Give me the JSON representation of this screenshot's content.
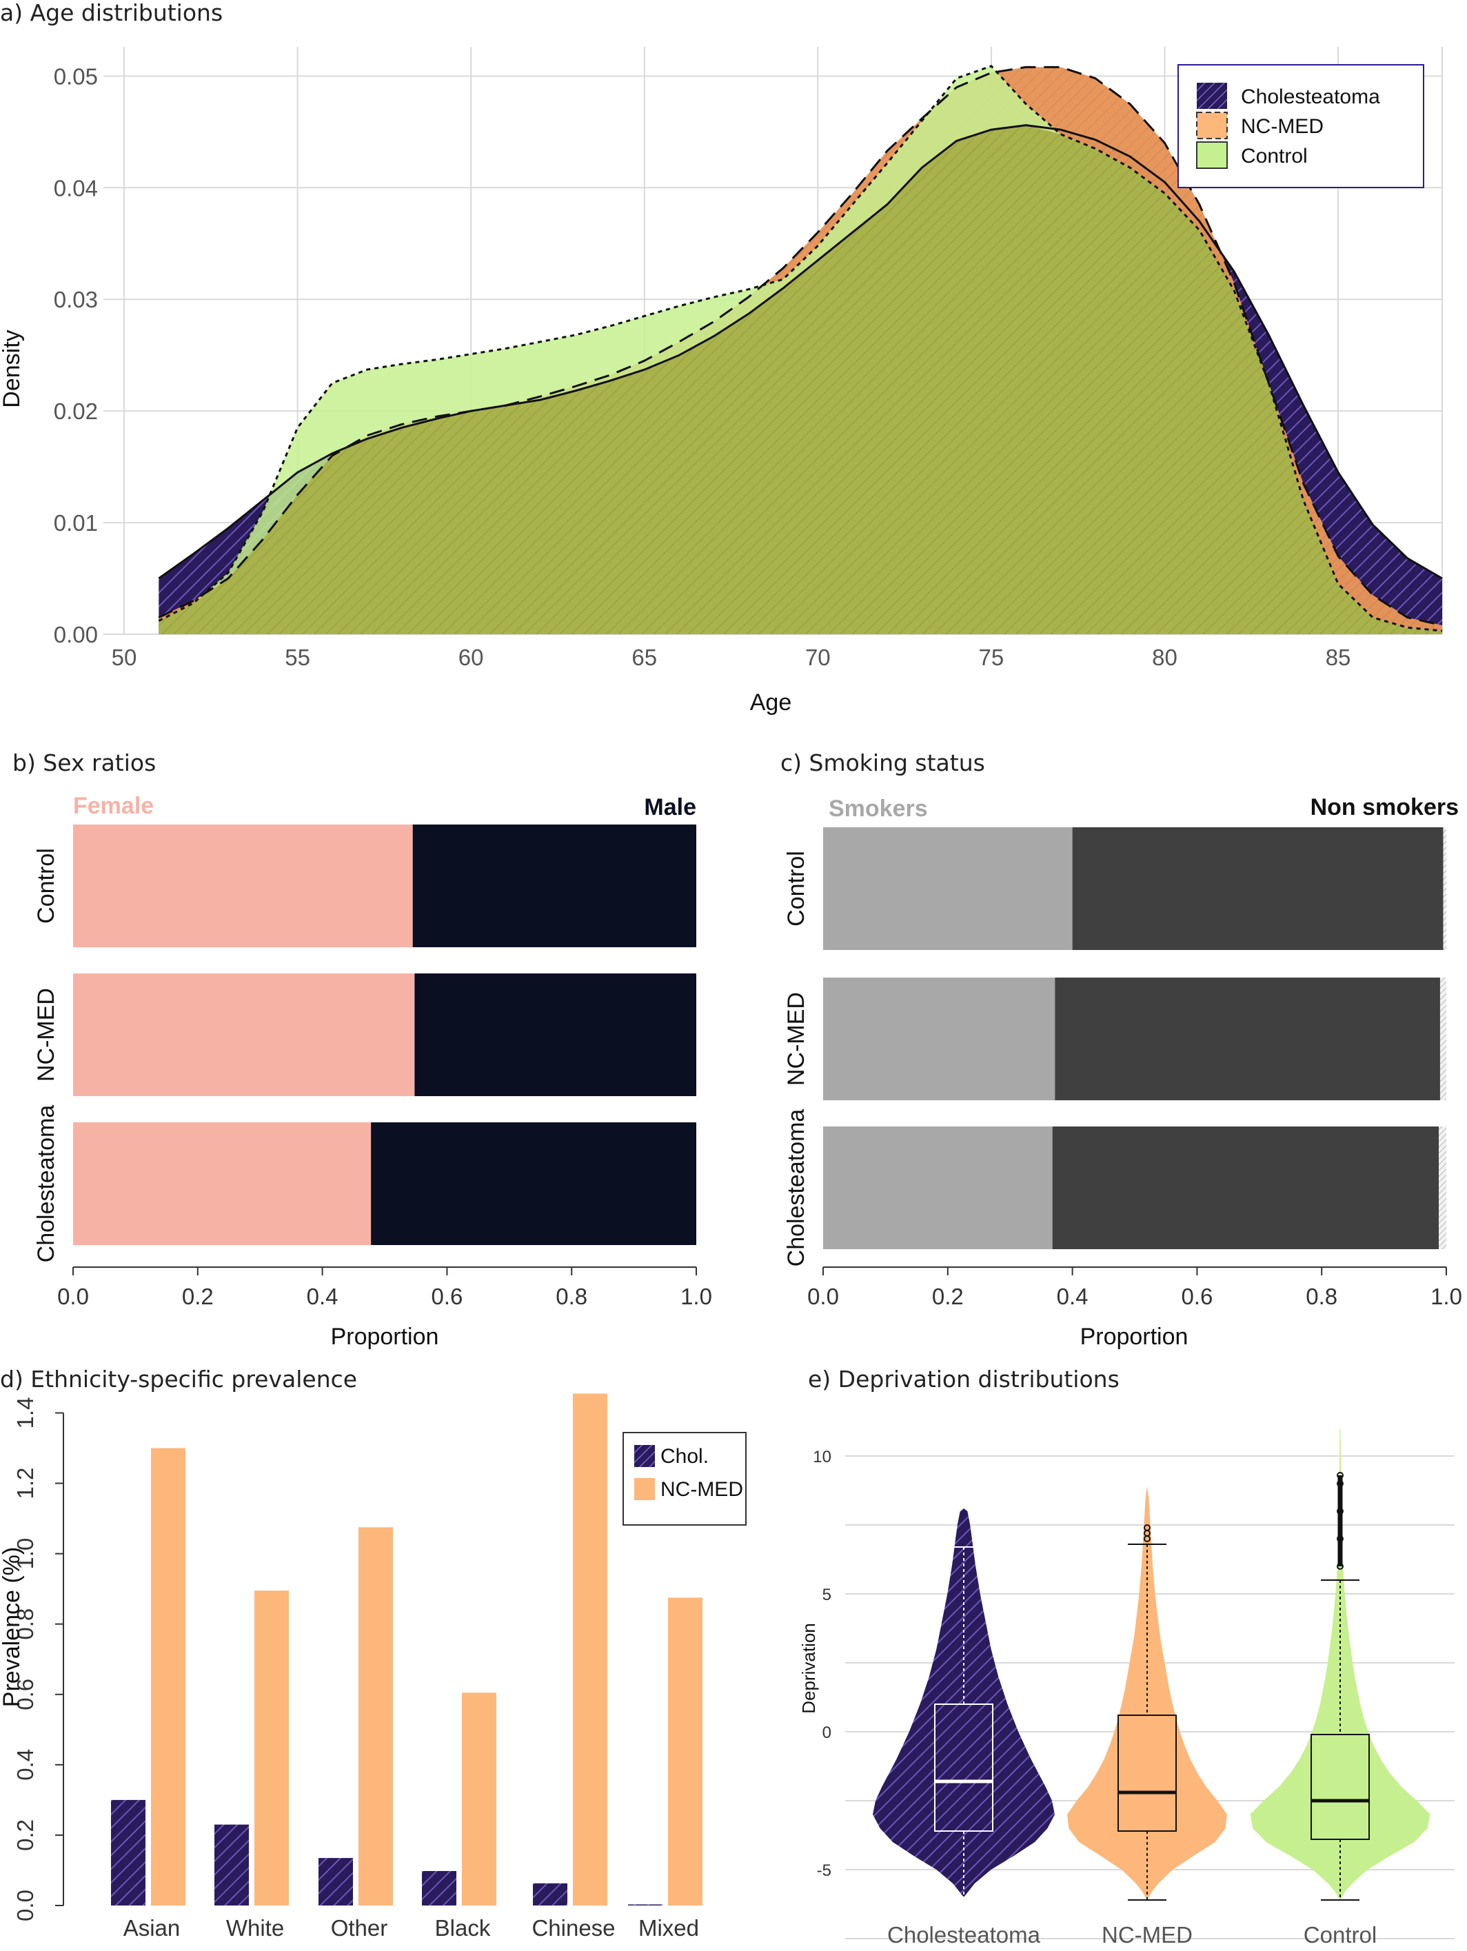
{
  "colors": {
    "cholesteatoma": "#2a1b5c",
    "ncmed": "#fdb77a",
    "control": "#c6f08f",
    "female": "#f7b2a6",
    "male": "#0a0f22",
    "smokers": "#a8a8a8",
    "nonsmokers": "#404040",
    "overlap": "#a9b34c",
    "legend_border": "#2a1b9c"
  },
  "chart_data": [
    {
      "id": "age",
      "type": "area",
      "title": "a) Age distributions",
      "xlabel": "Age",
      "ylabel": "Density",
      "xlim": [
        50,
        88
      ],
      "ylim": [
        0,
        0.052
      ],
      "xticks": [
        "50",
        "55",
        "60",
        "65",
        "70",
        "75",
        "80",
        "85"
      ],
      "yticks": [
        "0.00",
        "0.01",
        "0.02",
        "0.03",
        "0.04",
        "0.05"
      ],
      "legend": {
        "position": "top-right",
        "entries": [
          "Cholesteatoma",
          "NC-MED",
          "Control"
        ]
      },
      "grid": true,
      "series": [
        {
          "name": "Cholesteatoma",
          "line": "solid",
          "points": [
            [
              51,
              0.005
            ],
            [
              52,
              0.0072
            ],
            [
              53,
              0.0095
            ],
            [
              54,
              0.012
            ],
            [
              55,
              0.0145
            ],
            [
              56,
              0.0162
            ],
            [
              57,
              0.0175
            ],
            [
              58,
              0.0185
            ],
            [
              59,
              0.0193
            ],
            [
              60,
              0.02
            ],
            [
              61,
              0.0205
            ],
            [
              62,
              0.021
            ],
            [
              63,
              0.0218
            ],
            [
              64,
              0.0227
            ],
            [
              65,
              0.0237
            ],
            [
              66,
              0.025
            ],
            [
              67,
              0.0267
            ],
            [
              68,
              0.0287
            ],
            [
              69,
              0.031
            ],
            [
              70,
              0.0335
            ],
            [
              71,
              0.036
            ],
            [
              72,
              0.0385
            ],
            [
              73,
              0.0418
            ],
            [
              74,
              0.0442
            ],
            [
              75,
              0.0452
            ],
            [
              76,
              0.0456
            ],
            [
              77,
              0.0452
            ],
            [
              78,
              0.0443
            ],
            [
              79,
              0.0428
            ],
            [
              80,
              0.0405
            ],
            [
              81,
              0.037
            ],
            [
              82,
              0.0325
            ],
            [
              83,
              0.0268
            ],
            [
              84,
              0.0205
            ],
            [
              85,
              0.0145
            ],
            [
              86,
              0.0098
            ],
            [
              87,
              0.0068
            ],
            [
              88,
              0.005
            ]
          ]
        },
        {
          "name": "NC-MED",
          "line": "dashed",
          "points": [
            [
              51,
              0.0015
            ],
            [
              52,
              0.003
            ],
            [
              53,
              0.005
            ],
            [
              54,
              0.0085
            ],
            [
              55,
              0.0125
            ],
            [
              56,
              0.016
            ],
            [
              57,
              0.0178
            ],
            [
              58,
              0.0188
            ],
            [
              59,
              0.0195
            ],
            [
              60,
              0.02
            ],
            [
              61,
              0.0205
            ],
            [
              62,
              0.0213
            ],
            [
              63,
              0.0222
            ],
            [
              64,
              0.0232
            ],
            [
              65,
              0.0245
            ],
            [
              66,
              0.0262
            ],
            [
              67,
              0.028
            ],
            [
              68,
              0.0302
            ],
            [
              69,
              0.0328
            ],
            [
              70,
              0.036
            ],
            [
              71,
              0.0395
            ],
            [
              72,
              0.0433
            ],
            [
              73,
              0.0462
            ],
            [
              74,
              0.049
            ],
            [
              75,
              0.0503
            ],
            [
              76,
              0.0508
            ],
            [
              77,
              0.0508
            ],
            [
              78,
              0.0498
            ],
            [
              79,
              0.0475
            ],
            [
              80,
              0.044
            ],
            [
              81,
              0.0385
            ],
            [
              82,
              0.0315
            ],
            [
              83,
              0.0225
            ],
            [
              84,
              0.0135
            ],
            [
              85,
              0.007
            ],
            [
              86,
              0.0035
            ],
            [
              87,
              0.0015
            ],
            [
              88,
              0.0008
            ]
          ]
        },
        {
          "name": "Control",
          "line": "dotted",
          "points": [
            [
              51,
              0.0012
            ],
            [
              52,
              0.0028
            ],
            [
              53,
              0.0055
            ],
            [
              54,
              0.011
            ],
            [
              55,
              0.0185
            ],
            [
              56,
              0.0225
            ],
            [
              57,
              0.0237
            ],
            [
              58,
              0.0242
            ],
            [
              59,
              0.0246
            ],
            [
              60,
              0.0251
            ],
            [
              61,
              0.0256
            ],
            [
              62,
              0.0262
            ],
            [
              63,
              0.0268
            ],
            [
              64,
              0.0276
            ],
            [
              65,
              0.0285
            ],
            [
              66,
              0.0294
            ],
            [
              67,
              0.0302
            ],
            [
              68,
              0.0309
            ],
            [
              69,
              0.0318
            ],
            [
              70,
              0.0348
            ],
            [
              71,
              0.0385
            ],
            [
              72,
              0.0422
            ],
            [
              73,
              0.046
            ],
            [
              74,
              0.0498
            ],
            [
              75,
              0.0509
            ],
            [
              76,
              0.0475
            ],
            [
              77,
              0.0448
            ],
            [
              78,
              0.0435
            ],
            [
              79,
              0.0418
            ],
            [
              80,
              0.0395
            ],
            [
              81,
              0.0362
            ],
            [
              82,
              0.0308
            ],
            [
              83,
              0.0225
            ],
            [
              84,
              0.012
            ],
            [
              85,
              0.0045
            ],
            [
              86,
              0.0015
            ],
            [
              87,
              0.0006
            ],
            [
              88,
              0.0003
            ]
          ]
        }
      ]
    },
    {
      "id": "sex",
      "type": "bar",
      "title": "b) Sex ratios",
      "xlabel": "Proportion",
      "xlim": [
        0,
        1
      ],
      "xticks": [
        "0.0",
        "0.2",
        "0.4",
        "0.6",
        "0.8",
        "1.0"
      ],
      "series_labels": [
        "Female",
        "Male"
      ],
      "categories": [
        "Control",
        "NC-MED",
        "Cholesteatoma"
      ],
      "series": [
        {
          "name": "Female",
          "values": [
            0.545,
            0.548,
            0.478
          ]
        },
        {
          "name": "Male",
          "values": [
            0.455,
            0.452,
            0.522
          ]
        }
      ]
    },
    {
      "id": "smoking",
      "type": "bar",
      "title": "c) Smoking status",
      "xlabel": "Proportion",
      "xlim": [
        0,
        1
      ],
      "xticks": [
        "0.0",
        "0.2",
        "0.4",
        "0.6",
        "0.8",
        "1.0"
      ],
      "series_labels": [
        "Smokers",
        "Non smokers"
      ],
      "categories": [
        "Control",
        "NC-MED",
        "Cholesteatoma"
      ],
      "series": [
        {
          "name": "Smokers",
          "values": [
            0.4,
            0.372,
            0.368
          ]
        },
        {
          "name": "Non smokers",
          "values": [
            0.595,
            0.618,
            0.62
          ]
        },
        {
          "name": "",
          "values": [
            0.005,
            0.01,
            0.012
          ]
        }
      ]
    },
    {
      "id": "ethnicity",
      "type": "bar",
      "title": "d) Ethnicity-specific prevalence",
      "ylabel": "Prevalence (%)",
      "ylim": [
        0,
        1.45
      ],
      "yticks": [
        "0.0",
        "0.2",
        "0.4",
        "0.6",
        "0.8",
        "1.0",
        "1.2",
        "1.4"
      ],
      "categories": [
        "Asian",
        "White",
        "Other",
        "Black",
        "Chinese",
        "Mixed"
      ],
      "legend": {
        "position": "top-right",
        "entries": [
          "Chol.",
          "NC-MED"
        ]
      },
      "series": [
        {
          "name": "Chol.",
          "values": [
            0.3,
            0.23,
            0.135,
            0.098,
            0.063,
            0.003
          ]
        },
        {
          "name": "NC-MED",
          "values": [
            1.3,
            0.895,
            1.075,
            0.605,
            1.455,
            0.875
          ]
        }
      ]
    },
    {
      "id": "deprivation",
      "type": "violin",
      "title": "e) Deprivation distributions",
      "ylabel": "Deprivation",
      "ylim": [
        -6.5,
        10.5
      ],
      "yticks": [
        "10",
        "5",
        "0",
        "-5"
      ],
      "categories": [
        "Cholesteatoma",
        "NC-MED",
        "Control"
      ],
      "grid": true,
      "series": [
        {
          "name": "Cholesteatoma",
          "min": -6,
          "q1": -3.6,
          "median": -1.8,
          "q3": 1.0,
          "whisker_high": 6.7,
          "max": 8.1,
          "shape": [
            [
              -6,
              0.0
            ],
            [
              -5.5,
              0.12
            ],
            [
              -5,
              0.3
            ],
            [
              -4.5,
              0.55
            ],
            [
              -4,
              0.78
            ],
            [
              -3.5,
              0.92
            ],
            [
              -3,
              1.0
            ],
            [
              -2.5,
              0.97
            ],
            [
              -2,
              0.9
            ],
            [
              -1.5,
              0.82
            ],
            [
              -1,
              0.74
            ],
            [
              -0.5,
              0.67
            ],
            [
              0,
              0.6
            ],
            [
              0.5,
              0.54
            ],
            [
              1,
              0.48
            ],
            [
              1.5,
              0.43
            ],
            [
              2,
              0.38
            ],
            [
              2.5,
              0.34
            ],
            [
              3,
              0.3
            ],
            [
              3.5,
              0.27
            ],
            [
              4,
              0.24
            ],
            [
              4.5,
              0.21
            ],
            [
              5,
              0.18
            ],
            [
              5.5,
              0.155
            ],
            [
              6,
              0.13
            ],
            [
              6.5,
              0.11
            ],
            [
              7,
              0.09
            ],
            [
              7.5,
              0.07
            ],
            [
              8,
              0.04
            ],
            [
              8.1,
              0.0
            ]
          ]
        },
        {
          "name": "NC-MED",
          "min": -6.1,
          "q1": -3.6,
          "median": -2.2,
          "q3": 0.6,
          "whisker_high": 6.8,
          "max": 8.9,
          "outliers": [
            7.0,
            7.2,
            7.4
          ],
          "shape": [
            [
              -6.1,
              0.0
            ],
            [
              -5.8,
              0.06
            ],
            [
              -5.5,
              0.14
            ],
            [
              -5,
              0.32
            ],
            [
              -4.5,
              0.58
            ],
            [
              -4,
              0.85
            ],
            [
              -3.5,
              0.98
            ],
            [
              -3,
              1.0
            ],
            [
              -2.5,
              0.88
            ],
            [
              -2,
              0.74
            ],
            [
              -1.5,
              0.63
            ],
            [
              -1,
              0.54
            ],
            [
              -0.5,
              0.47
            ],
            [
              0,
              0.41
            ],
            [
              0.5,
              0.36
            ],
            [
              1,
              0.32
            ],
            [
              1.5,
              0.28
            ],
            [
              2,
              0.25
            ],
            [
              2.5,
              0.22
            ],
            [
              3,
              0.19
            ],
            [
              3.5,
              0.16
            ],
            [
              4,
              0.14
            ],
            [
              4.5,
              0.12
            ],
            [
              5,
              0.1
            ],
            [
              5.5,
              0.085
            ],
            [
              6,
              0.07
            ],
            [
              6.5,
              0.06
            ],
            [
              7,
              0.05
            ],
            [
              7.5,
              0.04
            ],
            [
              8,
              0.03
            ],
            [
              8.5,
              0.02
            ],
            [
              8.9,
              0.0
            ]
          ]
        },
        {
          "name": "Control",
          "min": -6.1,
          "q1": -3.9,
          "median": -2.5,
          "q3": -0.1,
          "whisker_high": 5.5,
          "max": 11,
          "outliers": [
            6.0,
            7.0,
            8.0,
            9.0,
            9.3
          ],
          "shape": [
            [
              -6.1,
              0.0
            ],
            [
              -5.8,
              0.05
            ],
            [
              -5.5,
              0.13
            ],
            [
              -5,
              0.3
            ],
            [
              -4.5,
              0.55
            ],
            [
              -4,
              0.82
            ],
            [
              -3.5,
              0.97
            ],
            [
              -3,
              1.0
            ],
            [
              -2.5,
              0.85
            ],
            [
              -2,
              0.68
            ],
            [
              -1.5,
              0.55
            ],
            [
              -1,
              0.45
            ],
            [
              -0.5,
              0.37
            ],
            [
              0,
              0.31
            ],
            [
              0.5,
              0.26
            ],
            [
              1,
              0.22
            ],
            [
              1.5,
              0.19
            ],
            [
              2,
              0.16
            ],
            [
              2.5,
              0.135
            ],
            [
              3,
              0.115
            ],
            [
              3.5,
              0.095
            ],
            [
              4,
              0.078
            ],
            [
              4.5,
              0.062
            ],
            [
              5,
              0.048
            ],
            [
              5.5,
              0.036
            ],
            [
              6,
              0.026
            ],
            [
              6.5,
              0.018
            ],
            [
              7,
              0.013
            ],
            [
              8,
              0.009
            ],
            [
              9,
              0.006
            ],
            [
              10,
              0.004
            ],
            [
              11,
              0.0
            ]
          ]
        }
      ]
    }
  ]
}
